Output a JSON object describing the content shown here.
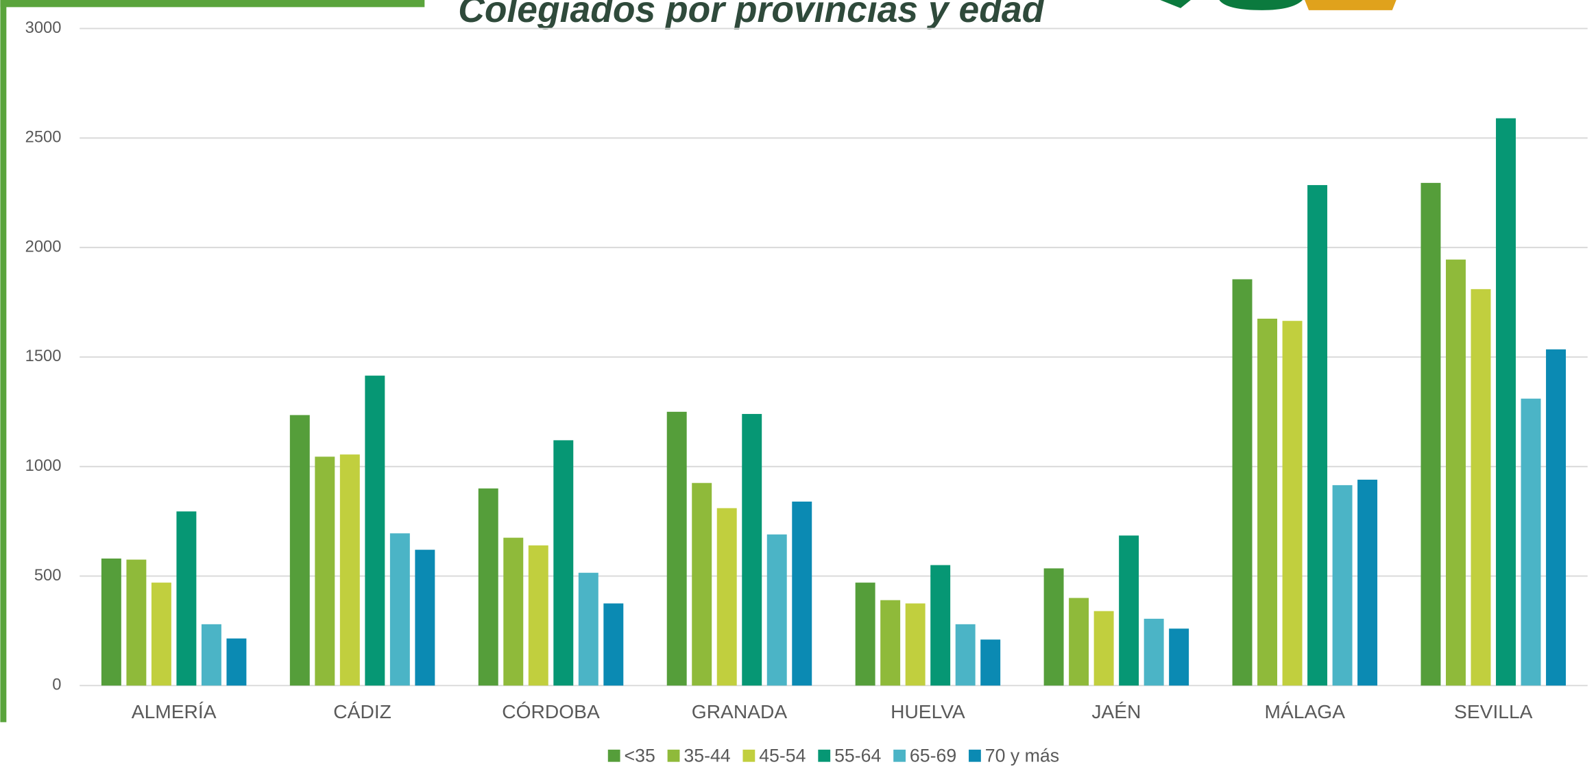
{
  "chart_data": {
    "type": "bar",
    "title": "Colegiados por provincias y edad",
    "categories": [
      "ALMERÍA",
      "CÁDIZ",
      "CÓRDOBA",
      "GRANADA",
      "HUELVA",
      "JAÉN",
      "MÁLAGA",
      "SEVILLA"
    ],
    "series": [
      {
        "name": "<35",
        "color": "#559e3a",
        "values": [
          580,
          1235,
          900,
          1250,
          470,
          535,
          1855,
          2295
        ]
      },
      {
        "name": "35-44",
        "color": "#8fba3a",
        "values": [
          575,
          1045,
          675,
          925,
          390,
          400,
          1675,
          1945
        ]
      },
      {
        "name": "45-54",
        "color": "#c1cf3e",
        "values": [
          470,
          1055,
          640,
          810,
          375,
          340,
          1665,
          1810
        ]
      },
      {
        "name": "55-64",
        "color": "#069774",
        "values": [
          795,
          1415,
          1120,
          1240,
          550,
          685,
          2285,
          2590
        ]
      },
      {
        "name": "65-69",
        "color": "#4bb4c6",
        "values": [
          280,
          695,
          515,
          690,
          280,
          305,
          915,
          1310
        ]
      },
      {
        "name": "70 y más",
        "color": "#0b8ab3",
        "values": [
          215,
          620,
          375,
          840,
          210,
          260,
          940,
          1535
        ]
      }
    ],
    "ylim": [
      0,
      3000
    ],
    "yticks": [
      0,
      500,
      1000,
      1500,
      2000,
      2500,
      3000
    ],
    "grid": true,
    "legend": "bottom"
  }
}
